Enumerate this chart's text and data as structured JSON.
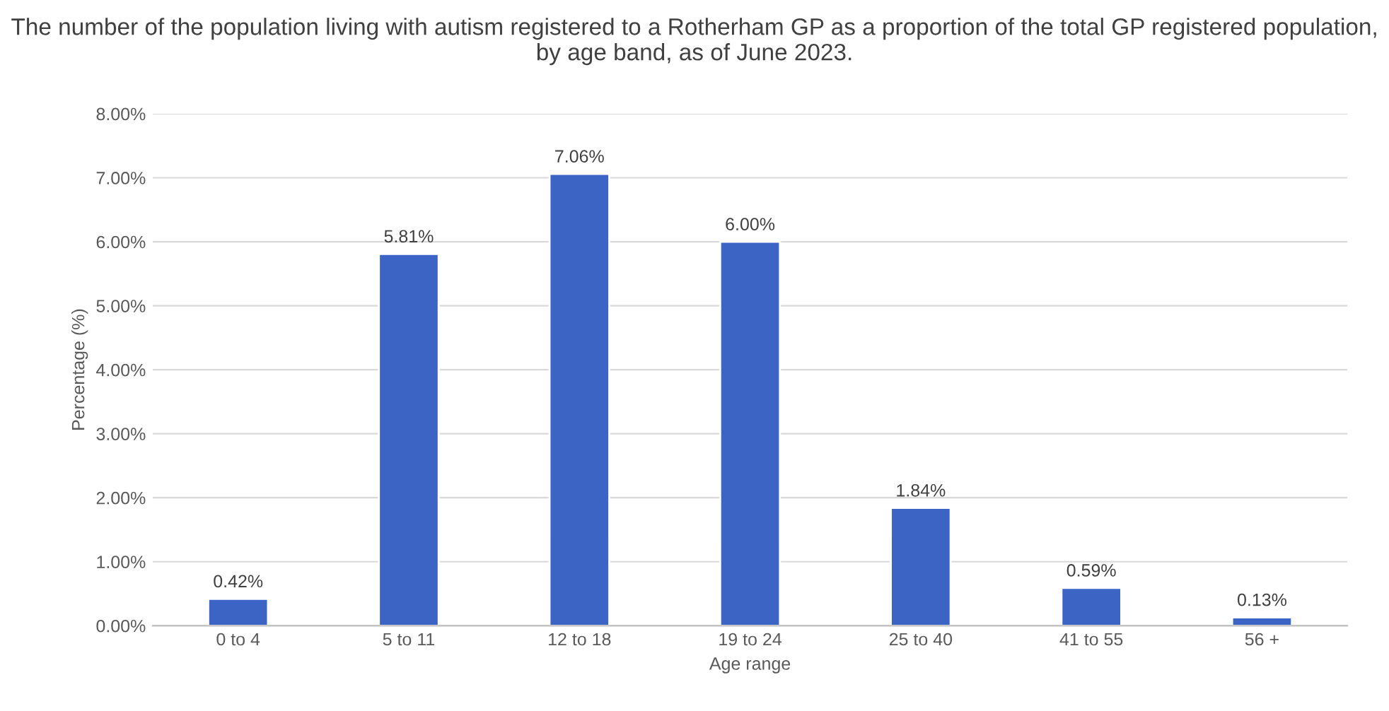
{
  "chart_data": {
    "type": "bar",
    "title": "The number of the population living with autism registered to a Rotherham GP as a proportion of the total GP registered population, by age band, as of June 2023.",
    "xlabel": "Age range",
    "ylabel": "Percentage (%)",
    "categories": [
      "0 to 4",
      "5 to 11",
      "12 to 18",
      "19 to 24",
      "25 to 40",
      "41 to 55",
      "56 +"
    ],
    "values": [
      0.42,
      5.81,
      7.06,
      6.0,
      1.84,
      0.59,
      0.13
    ],
    "value_labels": [
      "0.42%",
      "5.81%",
      "7.06%",
      "6.00%",
      "1.84%",
      "0.59%",
      "0.13%"
    ],
    "color": "#3b64c4",
    "ylim": [
      0,
      8
    ],
    "yticks": [
      {
        "value": 0,
        "label": "0.00%"
      },
      {
        "value": 1,
        "label": "1.00%"
      },
      {
        "value": 2,
        "label": "2.00%"
      },
      {
        "value": 3,
        "label": "3.00%"
      },
      {
        "value": 4,
        "label": "4.00%"
      },
      {
        "value": 5,
        "label": "5.00%"
      },
      {
        "value": 6,
        "label": "6.00%"
      },
      {
        "value": 7,
        "label": "7.00%"
      },
      {
        "value": 8,
        "label": "8.00%"
      }
    ],
    "grid": "y",
    "legend": false
  }
}
